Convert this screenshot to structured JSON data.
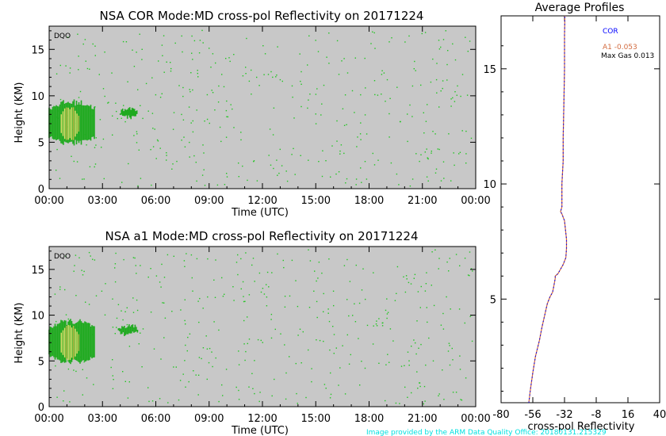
{
  "footer": "Image provided by the ARM Data Quality Office: 20180131.215329",
  "colors": {
    "plot_bg": "#c8c8c8",
    "echo_green": "#1faa1f",
    "speck_green": "#22c522",
    "echo_core": "#f0e070",
    "echo_mid": "#c8b84a",
    "profile_cor": "#0000ff",
    "profile_a1": "#d26a3e",
    "footer": "#00e0e0"
  },
  "chart_data": [
    {
      "type": "heatmap",
      "title": "NSA COR  Mode:MD  cross-pol Reflectivity on 20171224",
      "corner_label": "DQO",
      "xlabel": "Time (UTC)",
      "ylabel": "Height (KM)",
      "xticks": [
        "00:00",
        "03:00",
        "06:00",
        "09:00",
        "12:00",
        "15:00",
        "18:00",
        "21:00",
        "00:00"
      ],
      "x_hours": [
        0,
        3,
        6,
        9,
        12,
        15,
        18,
        21,
        24
      ],
      "yticks": [
        0,
        5,
        10,
        15
      ],
      "xlim": [
        0,
        24
      ],
      "ylim": [
        0,
        17.5
      ],
      "features": [
        {
          "name": "main echo",
          "t_start": 0.0,
          "t_end": 2.6,
          "h_bottom": 4.7,
          "h_top": 9.3
        },
        {
          "name": "small echo",
          "t_start": 4.0,
          "t_end": 5.0,
          "h_bottom": 7.4,
          "h_top": 8.7
        }
      ]
    },
    {
      "type": "heatmap",
      "title": "NSA a1  Mode:MD  cross-pol Reflectivity on 20171224",
      "corner_label": "DQO",
      "xlabel": "Time (UTC)",
      "ylabel": "Height (KM)",
      "xticks": [
        "00:00",
        "03:00",
        "06:00",
        "09:00",
        "12:00",
        "15:00",
        "18:00",
        "21:00",
        "00:00"
      ],
      "x_hours": [
        0,
        3,
        6,
        9,
        12,
        15,
        18,
        21,
        24
      ],
      "yticks": [
        0,
        5,
        10,
        15
      ],
      "xlim": [
        0,
        24
      ],
      "ylim": [
        0,
        17.5
      ],
      "features": [
        {
          "name": "main echo",
          "t_start": 0.0,
          "t_end": 2.6,
          "h_bottom": 4.7,
          "h_top": 9.3
        },
        {
          "name": "small echo",
          "t_start": 3.9,
          "t_end": 5.0,
          "h_bottom": 7.6,
          "h_top": 9.0
        }
      ]
    },
    {
      "type": "line",
      "title": "Average Profiles",
      "xlabel": "cross-pol Reflectivity",
      "xticks": [
        -80,
        -56,
        -32,
        -8,
        16,
        40
      ],
      "yticks": [
        5,
        10,
        15
      ],
      "xlim": [
        -80,
        40
      ],
      "ylim": [
        0.5,
        17.3
      ],
      "legend": {
        "cor": "COR",
        "a1": "A1  -0.053",
        "maxgas": "Max Gas 0.013"
      },
      "series": [
        {
          "name": "COR",
          "x": [
            -59,
            -58,
            -56,
            -54,
            -51,
            -49,
            -47,
            -45,
            -43,
            -41,
            -40,
            -39,
            -39,
            -37,
            -35,
            -33,
            -31,
            -30.5,
            -30.5,
            -32,
            -34,
            -35,
            -34,
            -34,
            -33,
            -33,
            -32.5,
            -32,
            -32,
            -31.7
          ],
          "y": [
            0.5,
            1.0,
            1.8,
            2.5,
            3.2,
            3.8,
            4.3,
            4.8,
            5.1,
            5.3,
            5.6,
            5.9,
            6.0,
            6.1,
            6.3,
            6.5,
            6.8,
            7.2,
            7.6,
            8.4,
            8.7,
            8.8,
            9.0,
            10.0,
            11.0,
            12.0,
            13.5,
            15.0,
            16.5,
            17.3
          ]
        },
        {
          "name": "A1",
          "x": [
            -59,
            -58,
            -56,
            -54,
            -51,
            -49,
            -47,
            -45,
            -43,
            -41,
            -40,
            -39,
            -39,
            -37,
            -35,
            -33,
            -31,
            -30.5,
            -30.5,
            -32,
            -34,
            -35,
            -34,
            -34,
            -33,
            -33,
            -32.5,
            -32,
            -32,
            -31.7
          ],
          "y": [
            0.5,
            1.0,
            1.8,
            2.5,
            3.2,
            3.8,
            4.3,
            4.8,
            5.1,
            5.3,
            5.6,
            5.9,
            6.0,
            6.1,
            6.3,
            6.5,
            6.8,
            7.2,
            7.6,
            8.4,
            8.7,
            8.8,
            9.0,
            10.0,
            11.0,
            12.0,
            13.5,
            15.0,
            16.5,
            17.3
          ]
        }
      ]
    }
  ]
}
